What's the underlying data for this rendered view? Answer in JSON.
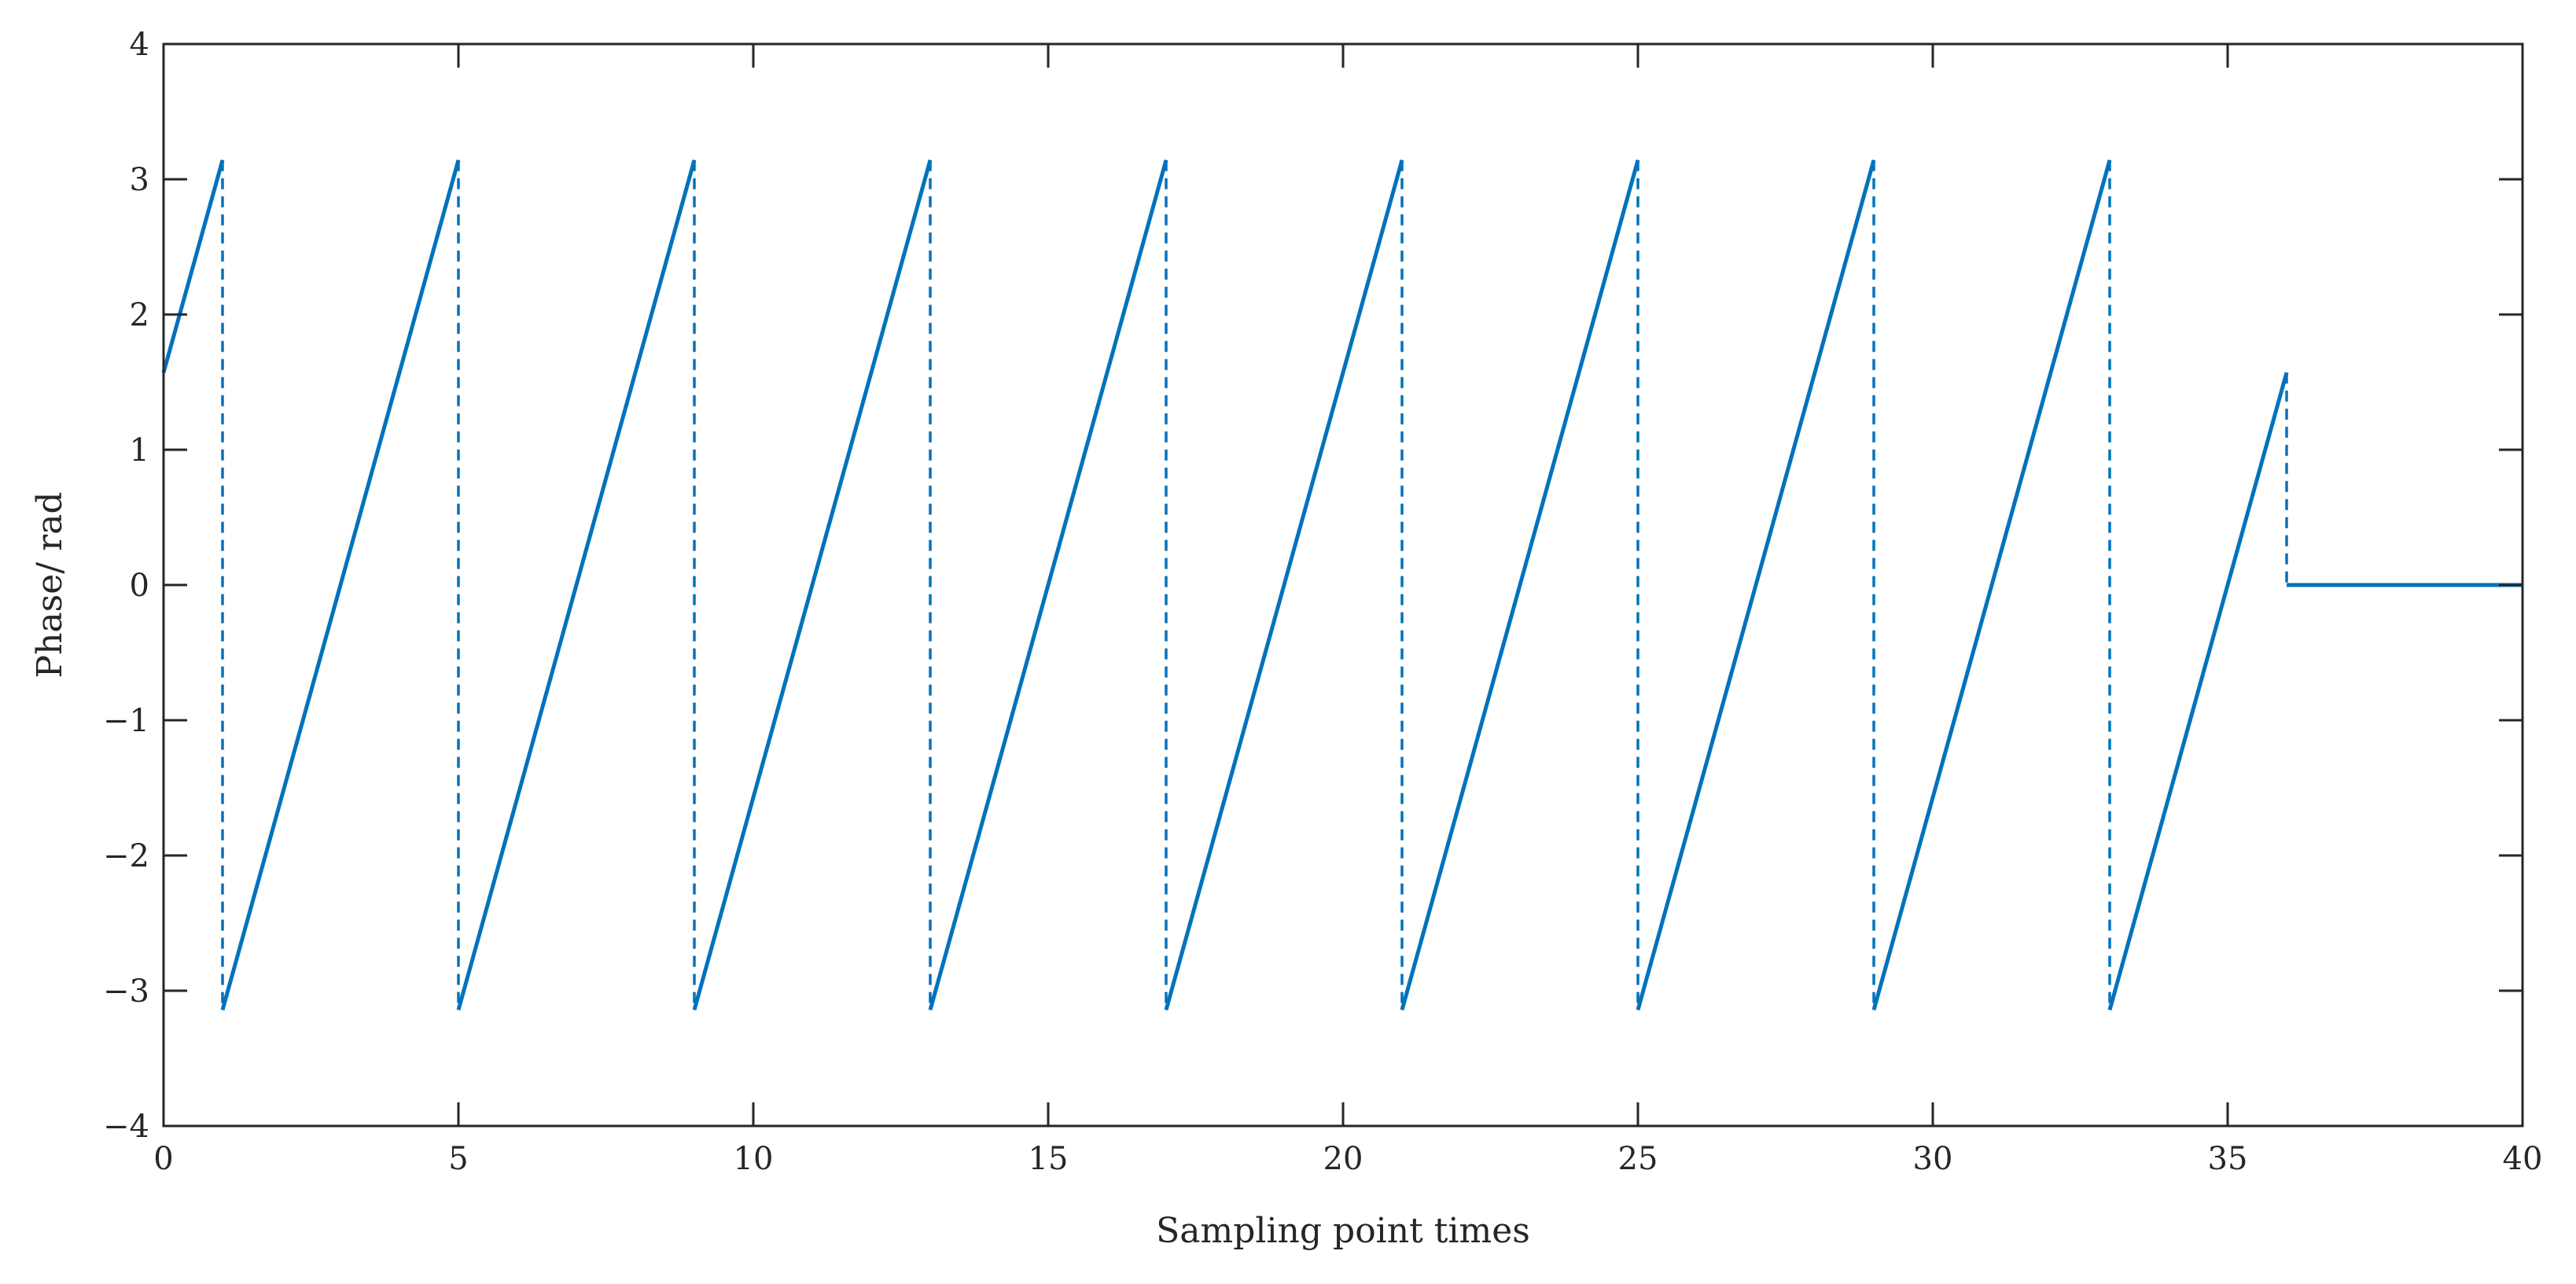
{
  "chart_data": {
    "type": "line",
    "title": "",
    "xlabel": "Sampling point times",
    "ylabel": "Phase/ rad",
    "xlim": [
      0,
      40
    ],
    "ylim": [
      -4,
      4
    ],
    "xticks": [
      0,
      5,
      10,
      15,
      20,
      25,
      30,
      35,
      40
    ],
    "yticks": [
      -4,
      -3,
      -2,
      -1,
      0,
      1,
      2,
      3,
      4
    ],
    "xtick_labels": [
      "0",
      "5",
      "10",
      "15",
      "20",
      "25",
      "30",
      "35",
      "40"
    ],
    "ytick_labels": [
      "−4",
      "−3",
      "−2",
      "−1",
      "0",
      "1",
      "2",
      "3",
      "4"
    ],
    "grid": false,
    "box": true,
    "line_color": "#0072BD",
    "series": [
      {
        "style": "solid",
        "segments": [
          [
            [
              0,
              1.5708
            ],
            [
              1,
              3.1416
            ]
          ],
          [
            [
              1,
              -3.1416
            ],
            [
              5,
              3.1416
            ]
          ],
          [
            [
              5,
              -3.1416
            ],
            [
              9,
              3.1416
            ]
          ],
          [
            [
              9,
              -3.1416
            ],
            [
              13,
              3.1416
            ]
          ],
          [
            [
              13,
              -3.1416
            ],
            [
              17,
              3.1416
            ]
          ],
          [
            [
              17,
              -3.1416
            ],
            [
              21,
              3.1416
            ]
          ],
          [
            [
              21,
              -3.1416
            ],
            [
              25,
              3.1416
            ]
          ],
          [
            [
              25,
              -3.1416
            ],
            [
              29,
              3.1416
            ]
          ],
          [
            [
              29,
              -3.1416
            ],
            [
              33,
              3.1416
            ]
          ],
          [
            [
              33,
              -3.1416
            ],
            [
              36,
              1.5708
            ]
          ],
          [
            [
              36,
              0
            ],
            [
              40,
              0
            ]
          ]
        ]
      },
      {
        "style": "dashed",
        "segments": [
          [
            [
              1,
              3.1416
            ],
            [
              1,
              -3.1416
            ]
          ],
          [
            [
              5,
              3.1416
            ],
            [
              5,
              -3.1416
            ]
          ],
          [
            [
              9,
              3.1416
            ],
            [
              9,
              -3.1416
            ]
          ],
          [
            [
              13,
              3.1416
            ],
            [
              13,
              -3.1416
            ]
          ],
          [
            [
              17,
              3.1416
            ],
            [
              17,
              -3.1416
            ]
          ],
          [
            [
              21,
              3.1416
            ],
            [
              21,
              -3.1416
            ]
          ],
          [
            [
              25,
              3.1416
            ],
            [
              25,
              -3.1416
            ]
          ],
          [
            [
              29,
              3.1416
            ],
            [
              29,
              -3.1416
            ]
          ],
          [
            [
              33,
              3.1416
            ],
            [
              33,
              -3.1416
            ]
          ],
          [
            [
              36,
              1.5708
            ],
            [
              36,
              0
            ]
          ]
        ]
      }
    ]
  }
}
